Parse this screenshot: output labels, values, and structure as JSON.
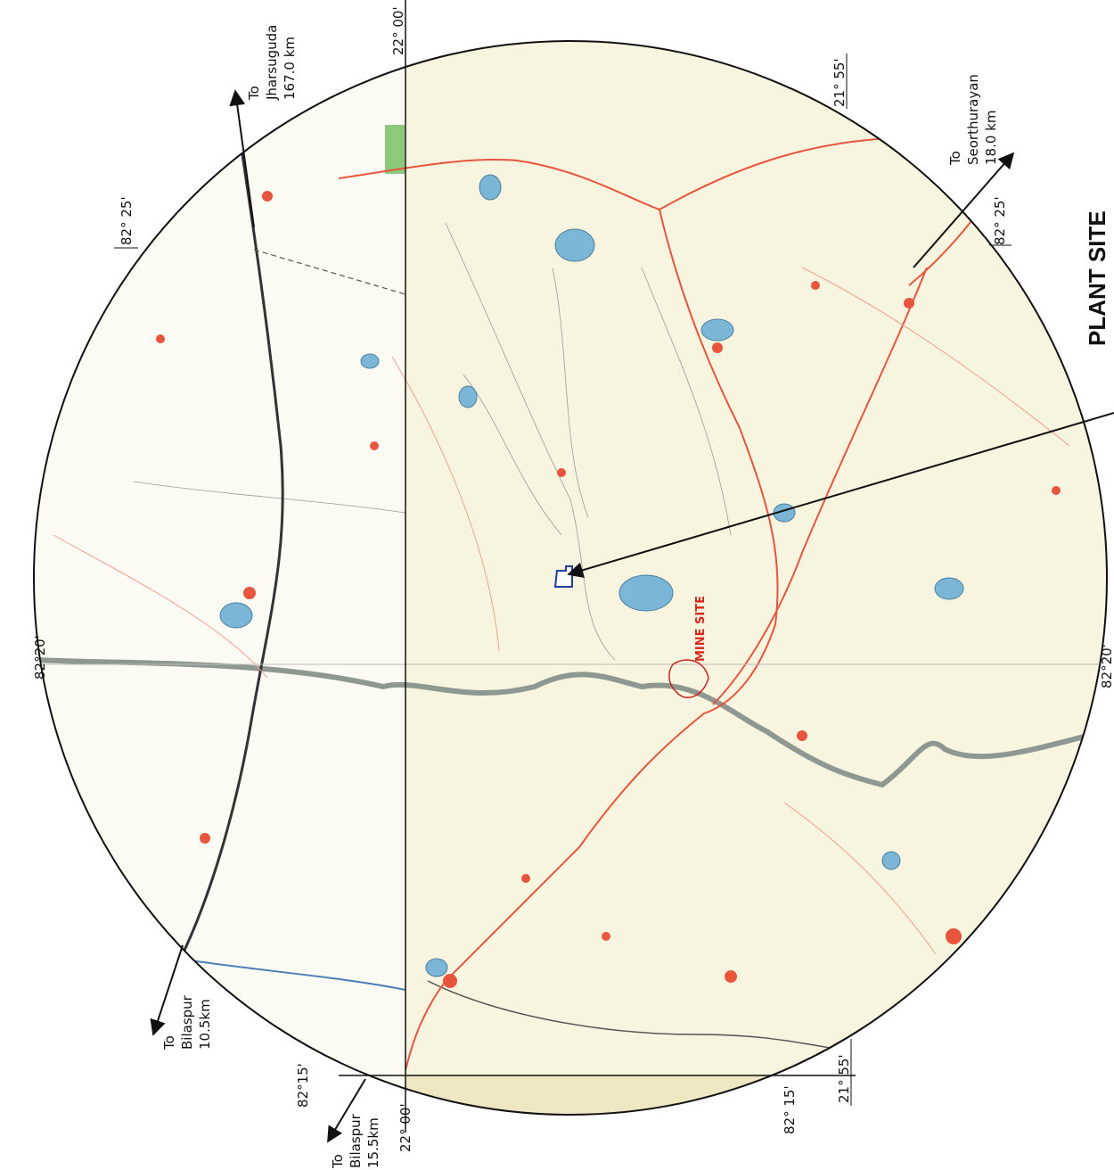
{
  "plant_site": "PLANT SITE",
  "mine_site": "MINE SITE",
  "directions": [
    {
      "lines": [
        "To",
        "Jharsuguda",
        "167.0 km"
      ]
    },
    {
      "lines": [
        "To",
        "Seorthurayan",
        "18.0 km"
      ]
    },
    {
      "lines": [
        "To",
        "Bilaspur",
        "10.5km"
      ]
    },
    {
      "lines": [
        "To",
        "Bilaspur",
        "15.5km"
      ]
    }
  ],
  "coordinates": [
    "22° 00'",
    "21° 55'",
    "82° 25'",
    "82° 25'",
    "82°20'",
    "82°20'",
    "82°15'",
    "22° 00'",
    "82° 15'",
    "21° 55'"
  ]
}
